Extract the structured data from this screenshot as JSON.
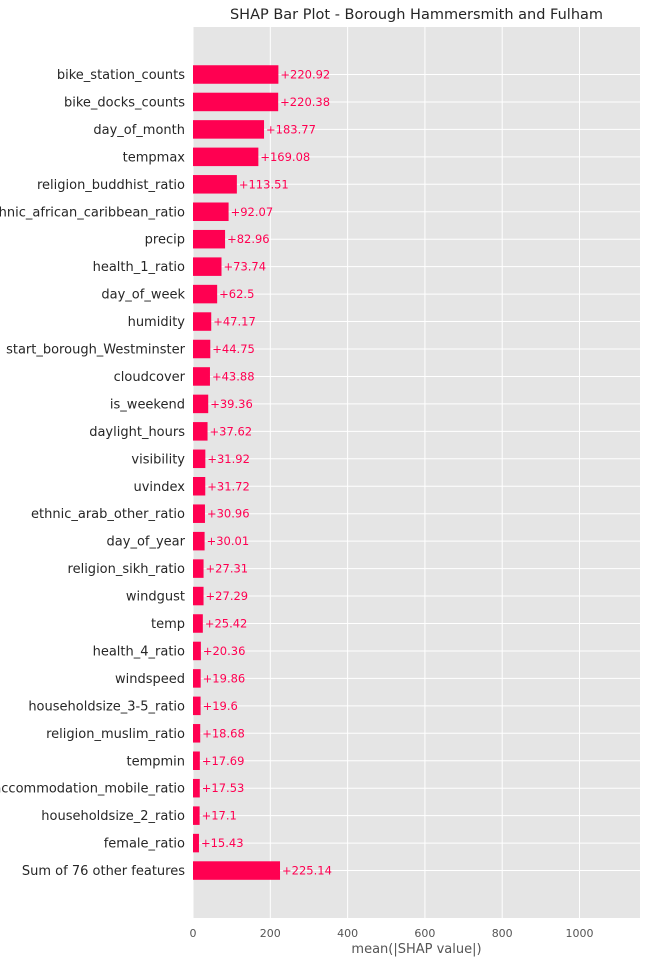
{
  "chart_data": {
    "type": "bar",
    "orientation": "horizontal",
    "title": "SHAP Bar Plot - Borough Hammersmith and Fulham",
    "xlabel": "mean(|SHAP value|)",
    "ylabel": "",
    "xlim": [
      0,
      1150
    ],
    "xticks": [
      0,
      200,
      400,
      600,
      800,
      1000
    ],
    "grid": true,
    "bar_color": "#ff0051",
    "background": "#e5e5e5",
    "categories": [
      "bike_station_counts",
      "bike_docks_counts",
      "day_of_month",
      "tempmax",
      "religion_buddhist_ratio",
      "ethnic_african_caribbean_ratio",
      "precip",
      "health_1_ratio",
      "day_of_week",
      "humidity",
      "start_borough_Westminster",
      "cloudcover",
      "is_weekend",
      "daylight_hours",
      "visibility",
      "uvindex",
      "ethnic_arab_other_ratio",
      "day_of_year",
      "religion_sikh_ratio",
      "windgust",
      "temp",
      "health_4_ratio",
      "windspeed",
      "householdsize_3-5_ratio",
      "religion_muslim_ratio",
      "tempmin",
      "accommodation_mobile_ratio",
      "householdsize_2_ratio",
      "female_ratio",
      "Sum of 76 other features"
    ],
    "values": [
      220.92,
      220.38,
      183.77,
      169.08,
      113.51,
      92.07,
      82.96,
      73.74,
      62.5,
      47.17,
      44.75,
      43.88,
      39.36,
      37.62,
      31.92,
      31.72,
      30.96,
      30.01,
      27.31,
      27.29,
      25.42,
      20.36,
      19.86,
      19.6,
      18.68,
      17.69,
      17.53,
      17.1,
      15.43,
      225.14
    ],
    "value_labels": [
      "+220.92",
      "+220.38",
      "+183.77",
      "+169.08",
      "+113.51",
      "+92.07",
      "+82.96",
      "+73.74",
      "+62.5",
      "+47.17",
      "+44.75",
      "+43.88",
      "+39.36",
      "+37.62",
      "+31.92",
      "+31.72",
      "+30.96",
      "+30.01",
      "+27.31",
      "+27.29",
      "+25.42",
      "+20.36",
      "+19.86",
      "+19.6",
      "+18.68",
      "+17.69",
      "+17.53",
      "+17.1",
      "+15.43",
      "+225.14"
    ]
  }
}
